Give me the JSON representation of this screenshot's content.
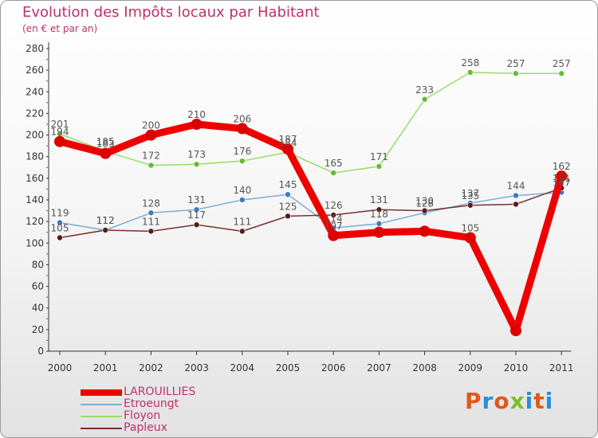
{
  "title": "Evolution des Impôts locaux par Habitant",
  "subtitle": "(en € et par an)",
  "logo": {
    "text": "Proxiti",
    "colors": [
      "#e0591c",
      "#2a8fd4",
      "#e0591c",
      "#7bbf2a",
      "#2a8fd4",
      "#e0591c",
      "#2a8fd4"
    ]
  },
  "chart_data": {
    "type": "line",
    "x": [
      "2000",
      "2001",
      "2002",
      "2003",
      "2004",
      "2005",
      "2006",
      "2007",
      "2008",
      "2009",
      "2010",
      "2011"
    ],
    "ylim": [
      0,
      280
    ],
    "yticks": [
      0,
      20,
      40,
      60,
      80,
      100,
      120,
      140,
      160,
      180,
      200,
      220,
      240,
      260,
      280
    ],
    "grid": false,
    "legend_position": "bottom-left",
    "series": [
      {
        "name": "LAROUILLIES",
        "color": "#ee0000",
        "marker_color": "#dd0000",
        "line_width": 9,
        "marker_radius": 7,
        "values": [
          194,
          183,
          200,
          210,
          206,
          187,
          107,
          110,
          111,
          105,
          19,
          162
        ],
        "labels": [
          "194",
          "183",
          "200",
          "210",
          "206",
          "187",
          "107",
          "",
          "",
          "105",
          "",
          "162"
        ]
      },
      {
        "name": "Etroeungt",
        "color": "#7aaed6",
        "marker_color": "#3b7bc0",
        "line_width": 1.5,
        "marker_radius": 3.5,
        "values": [
          119,
          112,
          128,
          131,
          140,
          145,
          114,
          118,
          128,
          137,
          144,
          147
        ],
        "labels": [
          "119",
          "112",
          "128",
          "131",
          "140",
          "145",
          "114",
          "118",
          "128",
          "137",
          "144",
          "147"
        ]
      },
      {
        "name": "Floyon",
        "color": "#99dd66",
        "marker_color": "#66bb33",
        "line_width": 1.5,
        "marker_radius": 3.5,
        "values": [
          201,
          185,
          172,
          173,
          176,
          184,
          165,
          171,
          233,
          258,
          257,
          257
        ],
        "labels": [
          "201",
          "185",
          "172",
          "173",
          "176",
          "184",
          "165",
          "171",
          "233",
          "258",
          "257",
          "257"
        ]
      },
      {
        "name": "Papleux",
        "color": "#7a3030",
        "marker_color": "#5a1a1a",
        "line_width": 1.5,
        "marker_radius": 3.5,
        "values": [
          105,
          112,
          111,
          117,
          111,
          125,
          126,
          131,
          130,
          135,
          136,
          151
        ],
        "labels": [
          "105",
          "112",
          "111",
          "117",
          "111",
          "125",
          "126",
          "131",
          "130",
          "135",
          "",
          "151"
        ]
      }
    ]
  }
}
